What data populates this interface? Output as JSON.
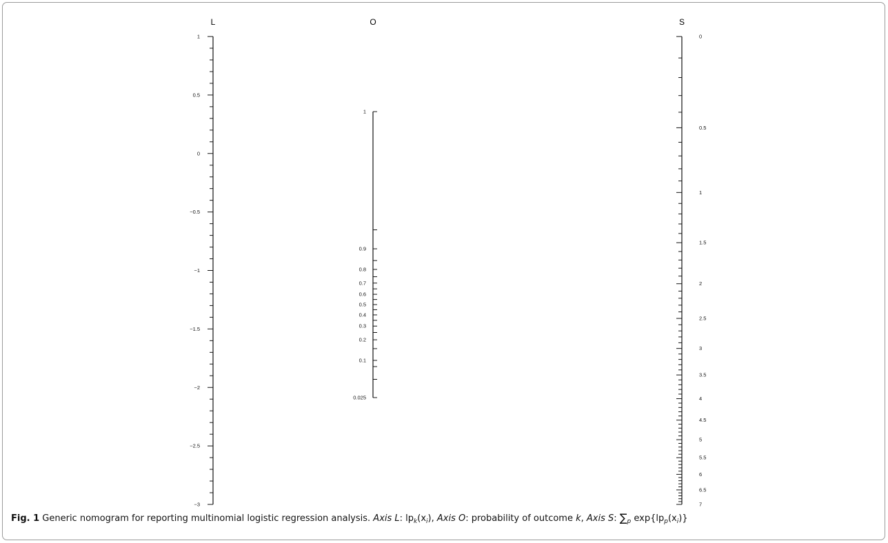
{
  "figure": {
    "axes": {
      "L": {
        "title": "L",
        "major_labels": [
          "1",
          "0.5",
          "0",
          "−0.5",
          "−1",
          "−1.5",
          "−2",
          "−2.5",
          "−3"
        ],
        "range": [
          -3,
          1
        ],
        "major_step": 0.5,
        "minor_step": 0.1
      },
      "O": {
        "title": "O",
        "labels": [
          "1",
          "0.9",
          "0.8",
          "0.7",
          "0.6",
          "0.5",
          "0.4",
          "0.3",
          "0.2",
          "0.1",
          "0.025"
        ],
        "label_values": [
          1,
          0.9,
          0.8,
          0.7,
          0.6,
          0.5,
          0.4,
          0.3,
          0.2,
          0.1,
          0.025
        ],
        "minor_values": [
          0.95,
          0.85,
          0.75,
          0.65,
          0.55,
          0.45,
          0.35,
          0.25,
          0.15,
          0.08,
          0.05
        ]
      },
      "S": {
        "title": "S",
        "labels": [
          "0",
          "0.5",
          "1",
          "1.5",
          "2",
          "2.5",
          "3",
          "3.5",
          "4",
          "4.5",
          "5",
          "5.5",
          "6",
          "6.5",
          "7"
        ],
        "label_values": [
          0,
          0.5,
          1,
          1.5,
          2,
          2.5,
          3,
          3.5,
          4,
          4.5,
          5,
          5.5,
          6,
          6.5,
          7
        ],
        "minor_step": 0.1
      }
    },
    "caption": {
      "fig_label": "Fig. 1",
      "text": " Generic nomogram for reporting multinomial logistic regression analysis. ",
      "axis_l": "Axis L",
      "axis_l_desc_a": ": lp",
      "axis_l_sub": "k",
      "axis_l_desc_b": "(x",
      "axis_l_sub2": "i",
      "axis_l_desc_c": "), ",
      "axis_o": "Axis O",
      "axis_o_desc": ": probability of outcome ",
      "axis_o_k": "k",
      "axis_o_sep": ", ",
      "axis_s": "Axis S",
      "axis_s_desc_a": ": ",
      "sum_sign": "∑",
      "sum_sub": "p",
      "axis_s_desc_b": " exp{lp",
      "axis_s_sub": "p",
      "axis_s_desc_c": "(x",
      "axis_s_sub2": "i",
      "axis_s_desc_d": ")}"
    }
  }
}
